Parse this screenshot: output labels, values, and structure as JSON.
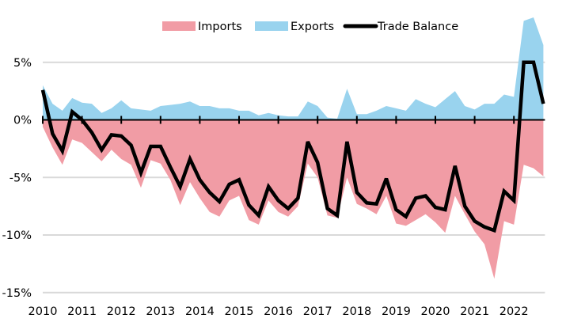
{
  "chart_data": {
    "type": "area",
    "title": "",
    "xlabel": "",
    "ylabel": "",
    "x_start_year": 2010,
    "frequency": "quarterly",
    "xticks": [
      "2010",
      "2011",
      "2012",
      "2013",
      "2014",
      "2015",
      "2016",
      "2017",
      "2018",
      "2019",
      "2020",
      "2021",
      "2022"
    ],
    "yticks": [
      {
        "value": 5,
        "label": "5%"
      },
      {
        "value": 0,
        "label": "0%"
      },
      {
        "value": -5,
        "label": "-5%"
      },
      {
        "value": -10,
        "label": "-10%"
      },
      {
        "value": -15,
        "label": "-15%"
      }
    ],
    "ylim": [
      -15.3,
      9.3
    ],
    "grid": true,
    "legend_position": "top",
    "series": [
      {
        "name": "Imports",
        "kind": "area",
        "color": "#F19CA5",
        "values": [
          -0.6,
          -2.4,
          -3.9,
          -1.7,
          -2.0,
          -2.8,
          -3.6,
          -2.6,
          -3.4,
          -3.9,
          -5.9,
          -3.5,
          -3.8,
          -5.2,
          -7.4,
          -5.4,
          -6.8,
          -8.0,
          -8.4,
          -7.0,
          -6.6,
          -8.7,
          -9.1,
          -7.0,
          -8.0,
          -8.4,
          -7.5,
          -3.8,
          -5.0,
          -8.3,
          -8.5,
          -5.0,
          -7.3,
          -7.7,
          -8.2,
          -6.6,
          -9.0,
          -9.2,
          -8.7,
          -8.2,
          -8.9,
          -9.8,
          -6.6,
          -8.2,
          -9.7,
          -10.8,
          -13.8,
          -8.8,
          -9.1,
          -3.9,
          -4.2,
          -4.9
        ]
      },
      {
        "name": "Exports",
        "kind": "area",
        "color": "#99D3EE",
        "values": [
          3.0,
          1.4,
          0.8,
          1.9,
          1.5,
          1.4,
          0.6,
          1.0,
          1.7,
          1.0,
          0.9,
          0.8,
          1.2,
          1.3,
          1.4,
          1.6,
          1.2,
          1.2,
          1.0,
          1.0,
          0.8,
          0.8,
          0.4,
          0.6,
          0.4,
          0.3,
          0.3,
          1.6,
          1.2,
          0.2,
          0.1,
          2.7,
          0.5,
          0.5,
          0.8,
          1.2,
          1.0,
          0.8,
          1.8,
          1.4,
          1.1,
          1.8,
          2.5,
          1.2,
          0.9,
          1.4,
          1.4,
          2.2,
          2.0,
          8.6,
          8.9,
          6.5
        ]
      },
      {
        "name": "Trade Balance",
        "kind": "line",
        "color": "#000000",
        "values": [
          2.6,
          -1.2,
          -2.7,
          0.7,
          0.0,
          -1.1,
          -2.6,
          -1.3,
          -1.4,
          -2.2,
          -4.6,
          -2.3,
          -2.3,
          -4.1,
          -5.8,
          -3.4,
          -5.2,
          -6.3,
          -7.1,
          -5.6,
          -5.2,
          -7.4,
          -8.3,
          -5.8,
          -7.0,
          -7.7,
          -6.8,
          -1.9,
          -3.7,
          -7.7,
          -8.3,
          -1.9,
          -6.3,
          -7.2,
          -7.3,
          -5.1,
          -7.8,
          -8.4,
          -6.8,
          -6.6,
          -7.6,
          -7.8,
          -4.0,
          -7.5,
          -8.8,
          -9.3,
          -9.6,
          -6.2,
          -7.0,
          5.0,
          5.0,
          1.4
        ]
      }
    ]
  }
}
